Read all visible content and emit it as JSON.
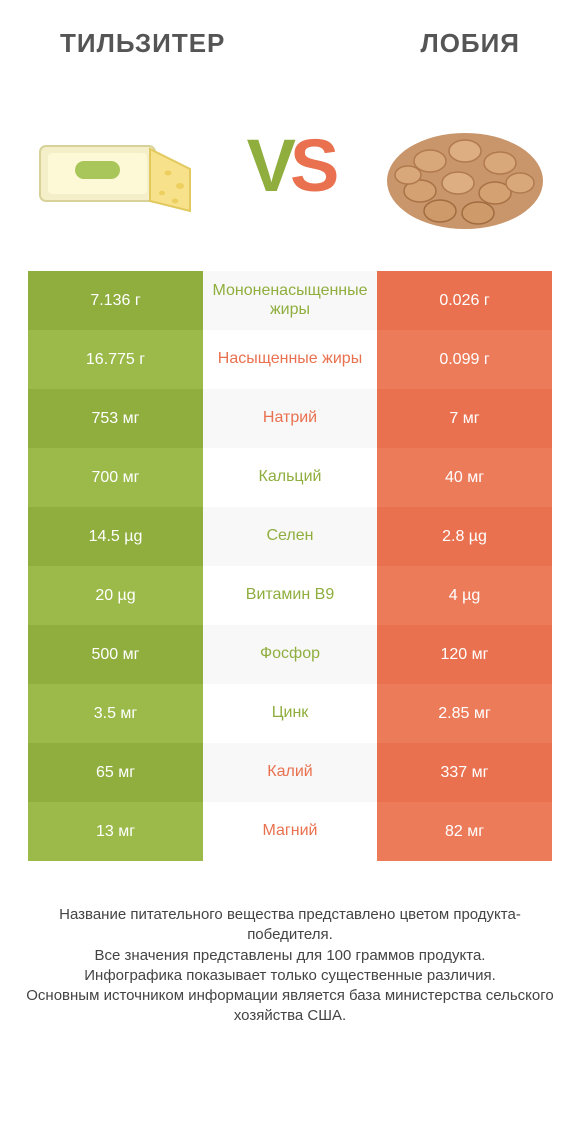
{
  "colors": {
    "green_a": "#8fae3e",
    "green_b": "#9bba4a",
    "orange_a": "#e9714f",
    "orange_b": "#ec7b5a",
    "mid_stripe_a": "#f8f8f8",
    "mid_stripe_b": "#ffffff",
    "cell_text": "#ffffff",
    "title_text": "#555555"
  },
  "header": {
    "left_title": "ТИЛЬЗИТЕР",
    "right_title": "ЛОБИЯ",
    "vs_v": "V",
    "vs_s": "S"
  },
  "rows": [
    {
      "left": "7.136 г",
      "mid": "Мононенасыщенные жиры",
      "right": "0.026 г"
    },
    {
      "left": "16.775 г",
      "mid": "Насыщенные жиры",
      "right": "0.099 г"
    },
    {
      "left": "753 мг",
      "mid": "Натрий",
      "right": "7 мг"
    },
    {
      "left": "700 мг",
      "mid": "Кальций",
      "right": "40 мг"
    },
    {
      "left": "14.5 µg",
      "mid": "Селен",
      "right": "2.8 µg"
    },
    {
      "left": "20 µg",
      "mid": "Витамин B9",
      "right": "4 µg"
    },
    {
      "left": "500 мг",
      "mid": "Фосфор",
      "right": "120 мг"
    },
    {
      "left": "3.5 мг",
      "mid": "Цинк",
      "right": "2.85 мг"
    },
    {
      "left": "65 мг",
      "mid": "Калий",
      "right": "337 мг"
    },
    {
      "left": "13 мг",
      "mid": "Магний",
      "right": "82 мг"
    }
  ],
  "row_meta": [
    {
      "mid_color": "green",
      "left_shade": "a",
      "right_shade": "a",
      "stripe": "a"
    },
    {
      "mid_color": "orange",
      "left_shade": "b",
      "right_shade": "b",
      "stripe": "b"
    },
    {
      "mid_color": "orange",
      "left_shade": "a",
      "right_shade": "a",
      "stripe": "a"
    },
    {
      "mid_color": "green",
      "left_shade": "b",
      "right_shade": "b",
      "stripe": "b"
    },
    {
      "mid_color": "green",
      "left_shade": "a",
      "right_shade": "a",
      "stripe": "a"
    },
    {
      "mid_color": "green",
      "left_shade": "b",
      "right_shade": "b",
      "stripe": "b"
    },
    {
      "mid_color": "green",
      "left_shade": "a",
      "right_shade": "a",
      "stripe": "a"
    },
    {
      "mid_color": "green",
      "left_shade": "b",
      "right_shade": "b",
      "stripe": "b"
    },
    {
      "mid_color": "orange",
      "left_shade": "a",
      "right_shade": "a",
      "stripe": "a"
    },
    {
      "mid_color": "orange",
      "left_shade": "b",
      "right_shade": "b",
      "stripe": "b"
    }
  ],
  "footer_text": "Название питательного вещества представлено цветом продукта-победителя.\nВсе значения представлены для 100 граммов продукта.\nИнфографика показывает только существенные различия.\nОсновным источником информации является база министерства сельского хозяйства США."
}
